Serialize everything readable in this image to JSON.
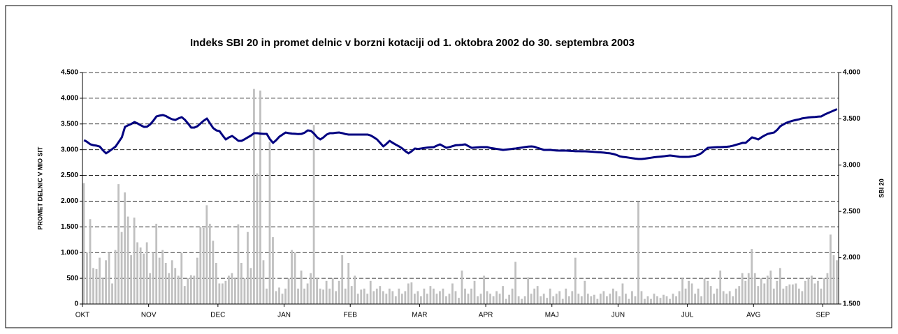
{
  "chart_data": {
    "type": "bar_line",
    "title": "Indeks SBI 20 in promet delnic v borzni kotaciji od 1. oktobra 2002 do 30. septembra 2003",
    "ylabel": "PROMET DELNIC V MIO SIT",
    "y2label": "SBI 20",
    "categories": [
      "OKT",
      null,
      null,
      null,
      null,
      null,
      null,
      null,
      null,
      null,
      null,
      null,
      null,
      null,
      null,
      null,
      null,
      null,
      null,
      null,
      null,
      "NOV",
      null,
      null,
      null,
      null,
      null,
      null,
      null,
      null,
      null,
      null,
      null,
      null,
      null,
      null,
      null,
      null,
      null,
      null,
      null,
      null,
      null,
      "DEC",
      null,
      null,
      null,
      null,
      null,
      null,
      null,
      null,
      null,
      null,
      null,
      null,
      null,
      null,
      null,
      null,
      null,
      null,
      null,
      null,
      "JAN",
      null,
      null,
      null,
      null,
      null,
      null,
      null,
      null,
      null,
      null,
      null,
      null,
      null,
      null,
      null,
      null,
      null,
      null,
      null,
      null,
      "FEB",
      null,
      null,
      null,
      null,
      null,
      null,
      null,
      null,
      null,
      null,
      null,
      null,
      null,
      null,
      null,
      null,
      null,
      null,
      null,
      null,
      null,
      "MAR",
      null,
      null,
      null,
      null,
      null,
      null,
      null,
      null,
      null,
      null,
      null,
      null,
      null,
      null,
      null,
      null,
      null,
      null,
      null,
      null,
      "APR",
      null,
      null,
      null,
      null,
      null,
      null,
      null,
      null,
      null,
      null,
      null,
      null,
      null,
      null,
      null,
      null,
      null,
      null,
      null,
      null,
      "MAJ",
      null,
      null,
      null,
      null,
      null,
      null,
      null,
      null,
      null,
      null,
      null,
      null,
      null,
      null,
      null,
      null,
      null,
      null,
      null,
      null,
      "JUN",
      null,
      null,
      null,
      null,
      null,
      null,
      null,
      null,
      null,
      null,
      null,
      null,
      null,
      null,
      null,
      null,
      null,
      null,
      null,
      null,
      null,
      "JUL",
      null,
      null,
      null,
      null,
      null,
      null,
      null,
      null,
      null,
      null,
      null,
      null,
      null,
      null,
      null,
      null,
      null,
      null,
      null,
      null,
      "AVG",
      null,
      null,
      null,
      null,
      null,
      null,
      null,
      null,
      null,
      null,
      null,
      null,
      null,
      null,
      null,
      null,
      null,
      null,
      null,
      null,
      null,
      "SEP",
      null,
      null,
      null,
      null
    ],
    "series": [
      {
        "name": "Promet delnic",
        "color": "#c0c0c0",
        "axis": "y",
        "kind": "bar",
        "values": [
          2350,
          1000,
          1650,
          700,
          680,
          900,
          500,
          850,
          1000,
          400,
          1050,
          2330,
          1400,
          2170,
          1700,
          950,
          1680,
          1200,
          1100,
          980,
          1200,
          600,
          1000,
          1560,
          900,
          1050,
          800,
          600,
          850,
          700,
          550,
          1000,
          350,
          500,
          560,
          550,
          900,
          1500,
          1480,
          1920,
          1560,
          1230,
          800,
          400,
          400,
          450,
          550,
          600,
          500,
          1550,
          800,
          500,
          1400,
          700,
          4180,
          2540,
          4150,
          850,
          300,
          3150,
          1300,
          250,
          320,
          200,
          300,
          500,
          1050,
          1000,
          300,
          650,
          300,
          400,
          600,
          3480,
          500,
          300,
          280,
          450,
          300,
          500,
          250,
          450,
          950,
          300,
          800,
          350,
          550,
          200,
          280,
          300,
          200,
          450,
          250,
          300,
          350,
          250,
          200,
          300,
          250,
          150,
          300,
          200,
          250,
          400,
          420,
          200,
          250,
          150,
          300,
          200,
          350,
          300,
          200,
          250,
          300,
          150,
          200,
          400,
          250,
          120,
          650,
          300,
          200,
          300,
          450,
          150,
          200,
          550,
          250,
          200,
          150,
          250,
          200,
          350,
          100,
          180,
          300,
          820,
          150,
          100,
          150,
          520,
          200,
          300,
          350,
          150,
          200,
          120,
          300,
          150,
          200,
          250,
          100,
          300,
          150,
          250,
          900,
          200,
          150,
          450,
          200,
          150,
          180,
          100,
          200,
          250,
          150,
          200,
          300,
          250,
          150,
          400,
          200,
          100,
          250,
          150,
          1980,
          250,
          100,
          150,
          100,
          200,
          150,
          120,
          180,
          150,
          100,
          200,
          150,
          250,
          500,
          300,
          450,
          400,
          200,
          300,
          150,
          500,
          450,
          350,
          200,
          300,
          650,
          250,
          200,
          250,
          150,
          300,
          350,
          600,
          450,
          600,
          1070,
          600,
          350,
          500,
          400,
          550,
          650,
          300,
          450,
          700,
          300,
          350,
          380,
          380,
          400,
          300,
          250,
          450,
          500,
          550,
          400,
          450,
          300,
          500,
          600,
          1350,
          950,
          850
        ]
      },
      {
        "name": "SBI 20",
        "color": "#000080",
        "axis": "y2",
        "kind": "line",
        "values": [
          3270,
          3250,
          3225,
          3215,
          3210,
          3200,
          3160,
          3127,
          3150,
          3175,
          3200,
          3250,
          3300,
          3413,
          3430,
          3445,
          3465,
          3450,
          3430,
          3413,
          3415,
          3440,
          3480,
          3526,
          3535,
          3541,
          3530,
          3510,
          3495,
          3488,
          3505,
          3518,
          3490,
          3450,
          3405,
          3405,
          3420,
          3450,
          3480,
          3503,
          3450,
          3400,
          3375,
          3367,
          3320,
          3277,
          3300,
          3315,
          3290,
          3262,
          3262,
          3280,
          3300,
          3320,
          3345,
          3345,
          3340,
          3337,
          3337,
          3280,
          3240,
          3270,
          3307,
          3330,
          3352,
          3345,
          3340,
          3338,
          3335,
          3337,
          3350,
          3375,
          3370,
          3340,
          3300,
          3277,
          3300,
          3330,
          3345,
          3345,
          3350,
          3352,
          3345,
          3335,
          3330,
          3330,
          3330,
          3330,
          3330,
          3330,
          3330,
          3320,
          3300,
          3277,
          3240,
          3202,
          3230,
          3262,
          3240,
          3220,
          3202,
          3180,
          3150,
          3127,
          3150,
          3179,
          3175,
          3179,
          3185,
          3190,
          3192,
          3194,
          3210,
          3224,
          3205,
          3187,
          3195,
          3205,
          3215,
          3217,
          3220,
          3224,
          3205,
          3187,
          3190,
          3192,
          3194,
          3194,
          3194,
          3185,
          3180,
          3175,
          3170,
          3164,
          3168,
          3172,
          3176,
          3179,
          3185,
          3190,
          3195,
          3200,
          3202,
          3198,
          3185,
          3175,
          3164,
          3164,
          3165,
          3160,
          3158,
          3157,
          3157,
          3157,
          3155,
          3153,
          3150,
          3150,
          3149,
          3149,
          3147,
          3145,
          3142,
          3140,
          3138,
          3135,
          3130,
          3127,
          3120,
          3110,
          3095,
          3089,
          3085,
          3080,
          3075,
          3070,
          3066,
          3066,
          3070,
          3075,
          3080,
          3085,
          3089,
          3092,
          3095,
          3100,
          3104,
          3100,
          3095,
          3090,
          3089,
          3089,
          3090,
          3095,
          3100,
          3112,
          3130,
          3160,
          3187,
          3190,
          3192,
          3194,
          3194,
          3196,
          3198,
          3202,
          3210,
          3220,
          3230,
          3240,
          3240,
          3270,
          3300,
          3290,
          3277,
          3300,
          3320,
          3337,
          3345,
          3352,
          3380,
          3420,
          3440,
          3458,
          3470,
          3480,
          3488,
          3495,
          3505,
          3510,
          3515,
          3518,
          3520,
          3524,
          3526,
          3545,
          3560,
          3575,
          3590,
          3605
        ]
      }
    ],
    "ylim": [
      0,
      4500
    ],
    "yticks": [
      0,
      {
        "value": 500,
        "label": "500"
      },
      {
        "value": 1000,
        "label": "1.000"
      },
      {
        "value": 1500,
        "label": "1.500"
      },
      {
        "value": 2000,
        "label": "2.000"
      },
      {
        "value": 2500,
        "label": "2.500"
      },
      {
        "value": 3000,
        "label": "3.000"
      },
      {
        "value": 3500,
        "label": "3.500"
      },
      {
        "value": 4000,
        "label": "4.000"
      },
      {
        "value": 4500,
        "label": "4.500"
      }
    ],
    "y2lim": [
      1500,
      4000
    ],
    "y2ticks": [
      {
        "value": 1500,
        "label": "1.500"
      },
      {
        "value": 2000,
        "label": "2.000"
      },
      {
        "value": 2500,
        "label": "2.500"
      },
      {
        "value": 3000,
        "label": "3.000"
      },
      {
        "value": 3500,
        "label": "3.500"
      },
      {
        "value": 4000,
        "label": "4.000"
      }
    ],
    "grid": true
  }
}
